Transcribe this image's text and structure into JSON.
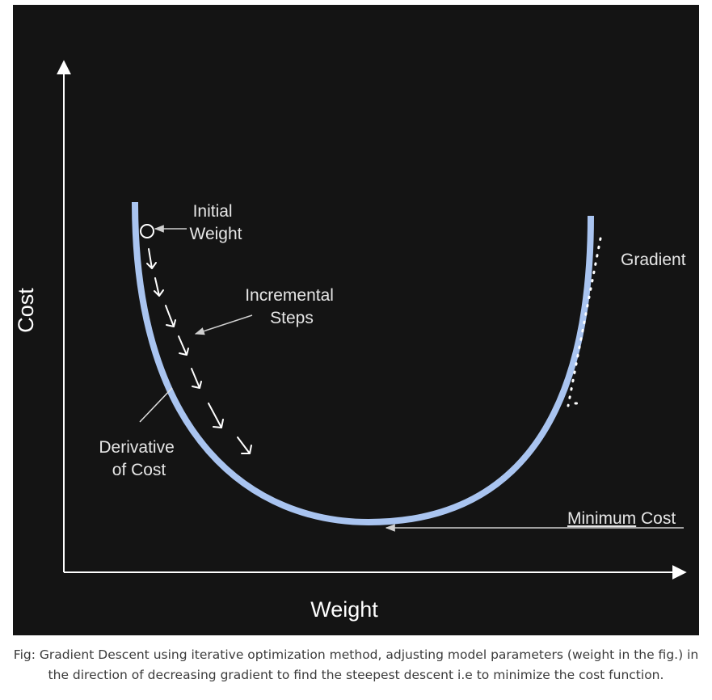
{
  "diagram": {
    "axes": {
      "x_label": "Weight",
      "y_label": "Cost"
    },
    "labels": {
      "initial_weight": [
        "Initial",
        "Weight"
      ],
      "incremental_steps": [
        "Incremental",
        "Steps"
      ],
      "derivative_of_cost": [
        "Derivative",
        "of Cost"
      ],
      "gradient": "Gradient",
      "minimum_cost": {
        "underlined": "Minimum",
        "rest": " Cost"
      }
    },
    "colors": {
      "background": "#141414",
      "curve": "#a9c4f0",
      "axes": "#ffffff",
      "text": "#e6e6e6"
    }
  },
  "caption": {
    "line1": "Fig: Gradient Descent using iterative optimization method, adjusting model parameters (weight in the fig.) in",
    "line2": "the direction of decreasing gradient to find the steepest descent i.e to minimize the cost function."
  }
}
